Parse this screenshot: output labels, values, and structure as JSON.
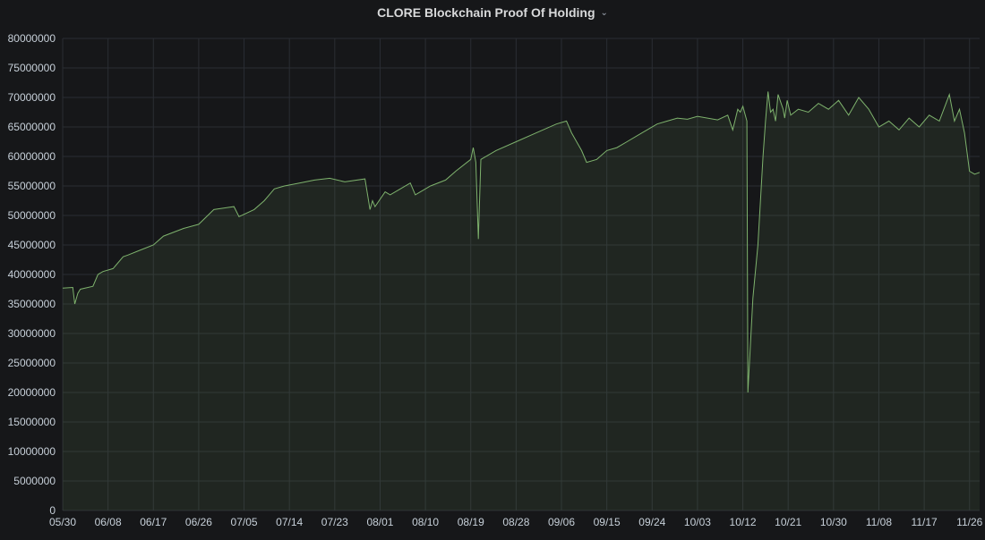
{
  "panel": {
    "title": "CLORE Blockchain Proof Of Holding",
    "menu_icon": "chevron-down-icon"
  },
  "colors": {
    "background": "#161719",
    "grid": "#2a2d33",
    "line": "#7eb26d",
    "fill": "#7eb26d",
    "tick_text": "#c7d0d9"
  },
  "chart_data": {
    "type": "area",
    "title": "CLORE Blockchain Proof Of Holding",
    "xlabel": "",
    "ylabel": "",
    "grid": true,
    "legend": "none",
    "ylim": [
      0,
      80000000
    ],
    "y_ticks": [
      0,
      5000000,
      10000000,
      15000000,
      20000000,
      25000000,
      30000000,
      35000000,
      40000000,
      45000000,
      50000000,
      55000000,
      60000000,
      65000000,
      70000000,
      75000000,
      80000000
    ],
    "y_tick_labels": [
      "0",
      "5000000",
      "10000000",
      "15000000",
      "20000000",
      "25000000",
      "30000000",
      "35000000",
      "40000000",
      "45000000",
      "50000000",
      "55000000",
      "60000000",
      "65000000",
      "70000000",
      "75000000",
      "80000000"
    ],
    "x_tick_labels": [
      "05/30",
      "06/08",
      "06/17",
      "06/26",
      "07/05",
      "07/14",
      "07/23",
      "08/01",
      "08/10",
      "08/19",
      "08/28",
      "09/06",
      "09/15",
      "09/24",
      "10/03",
      "10/12",
      "10/21",
      "10/30",
      "11/08",
      "11/17",
      "11/26"
    ],
    "x_ticks_day": [
      0,
      9,
      18,
      27,
      36,
      45,
      54,
      63,
      72,
      81,
      90,
      99,
      108,
      117,
      126,
      135,
      144,
      153,
      162,
      171,
      180
    ],
    "xlim_day": [
      0,
      182
    ],
    "series": [
      {
        "x_day": [
          0,
          2,
          2.4,
          3,
          3.5,
          6,
          7,
          8,
          10,
          12,
          13,
          15,
          18,
          20,
          24,
          27,
          30,
          34,
          35,
          38,
          40,
          41,
          42,
          44,
          47,
          50,
          53,
          56,
          60,
          61,
          61.5,
          62,
          64,
          65,
          67,
          69,
          70,
          71,
          73,
          76,
          78,
          81,
          81.5,
          82,
          82.5,
          83,
          86,
          90,
          94,
          98,
          100,
          101,
          102,
          103,
          104,
          106,
          108,
          110,
          112,
          115,
          118,
          120,
          122,
          124,
          126,
          130,
          132,
          133,
          134,
          134.5,
          135,
          135.8,
          136,
          137,
          138,
          139,
          139.5,
          140,
          140.5,
          141,
          141.5,
          142,
          143,
          143.3,
          143.8,
          144.5,
          146,
          148,
          150,
          152,
          154,
          156,
          158,
          160,
          162,
          164,
          166,
          168,
          170,
          172,
          174,
          176,
          177,
          178,
          179,
          180,
          181,
          182
        ],
        "y": [
          37700000,
          37800000,
          35000000,
          36800000,
          37500000,
          38000000,
          40000000,
          40500000,
          41000000,
          43000000,
          43300000,
          44000000,
          45000000,
          46500000,
          47800000,
          48500000,
          51000000,
          51500000,
          49800000,
          51000000,
          52500000,
          53500000,
          54500000,
          55000000,
          55500000,
          56000000,
          56300000,
          55700000,
          56200000,
          51000000,
          52500000,
          51500000,
          54000000,
          53500000,
          54500000,
          55500000,
          53500000,
          54000000,
          55000000,
          56000000,
          57500000,
          59500000,
          61500000,
          59000000,
          46000000,
          59500000,
          61000000,
          62500000,
          64000000,
          65500000,
          66000000,
          64000000,
          62500000,
          61000000,
          59000000,
          59500000,
          61000000,
          61500000,
          62500000,
          64000000,
          65500000,
          66000000,
          66500000,
          66300000,
          66800000,
          66200000,
          67000000,
          64500000,
          68000000,
          67500000,
          68500000,
          66000000,
          20000000,
          36000000,
          45000000,
          60000000,
          66000000,
          71000000,
          67500000,
          68000000,
          66000000,
          70500000,
          68000000,
          66500000,
          69500000,
          67000000,
          68000000,
          67500000,
          69000000,
          68000000,
          69500000,
          67000000,
          70000000,
          68000000,
          65000000,
          66000000,
          64500000,
          66500000,
          65000000,
          67000000,
          66000000,
          70500000,
          66000000,
          68000000,
          64000000,
          57500000,
          57000000,
          57300000
        ]
      }
    ]
  }
}
